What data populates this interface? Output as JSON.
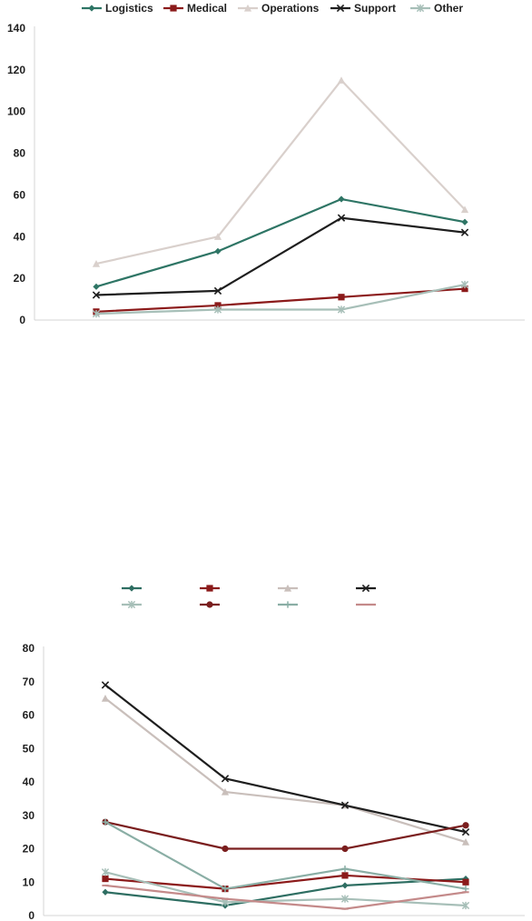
{
  "chart_data": [
    {
      "type": "line",
      "title": "",
      "xlabel": "",
      "ylabel": "",
      "ylim": [
        0,
        140
      ],
      "yticks": [
        0,
        20,
        40,
        60,
        80,
        100,
        120,
        140
      ],
      "x": [
        1,
        2,
        3,
        4
      ],
      "grid": false,
      "legend": "top",
      "series": [
        {
          "name": "Logistics",
          "values": [
            16,
            33,
            58,
            47
          ],
          "color": "#2e7565",
          "marker": "diamond"
        },
        {
          "name": "Medical",
          "values": [
            4,
            7,
            11,
            15
          ],
          "color": "#8b1a1a",
          "marker": "square"
        },
        {
          "name": "Operations",
          "values": [
            27,
            40,
            115,
            53
          ],
          "color": "#d9d0cc",
          "marker": "triangle"
        },
        {
          "name": "Support",
          "values": [
            12,
            14,
            49,
            42
          ],
          "color": "#1e1e1e",
          "marker": "x"
        },
        {
          "name": "Other",
          "values": [
            3,
            5,
            5,
            17
          ],
          "color": "#a7bfb8",
          "marker": "star"
        }
      ]
    },
    {
      "type": "line",
      "title": "",
      "xlabel": "",
      "ylabel": "",
      "ylim": [
        0,
        80
      ],
      "yticks": [
        0,
        10,
        20,
        30,
        40,
        50,
        60,
        70,
        80
      ],
      "x": [
        1,
        2,
        3,
        4
      ],
      "grid": false,
      "legend": "top",
      "series": [
        {
          "values": [
            7,
            3,
            9,
            11
          ],
          "color": "#2e6e62",
          "marker": "diamond"
        },
        {
          "values": [
            11,
            8,
            12,
            10
          ],
          "color": "#8b1a1a",
          "marker": "square"
        },
        {
          "values": [
            65,
            37,
            33,
            22
          ],
          "color": "#c9bfbb",
          "marker": "triangle"
        },
        {
          "values": [
            69,
            41,
            33,
            25
          ],
          "color": "#1e1e1e",
          "marker": "x"
        },
        {
          "values": [
            13,
            4,
            5,
            3
          ],
          "color": "#a7bfb8",
          "marker": "star"
        },
        {
          "values": [
            28,
            20,
            20,
            27
          ],
          "color": "#7a1e1e",
          "marker": "circle"
        },
        {
          "values": [
            28,
            8,
            14,
            8
          ],
          "color": "#8aaea5",
          "marker": "plus"
        },
        {
          "values": [
            9,
            5,
            2,
            7
          ],
          "color": "#c48a8a",
          "marker": "dash"
        }
      ]
    }
  ]
}
